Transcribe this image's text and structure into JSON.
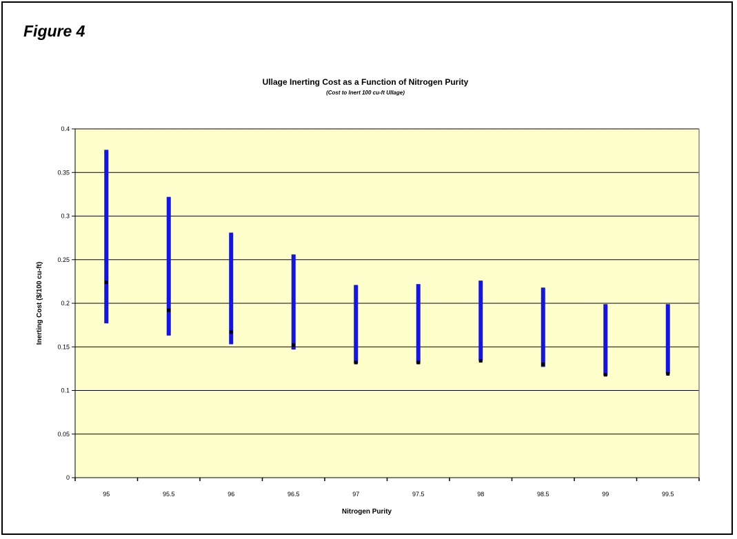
{
  "figure_label": "Figure 4",
  "colors": {
    "plot_bg": "#ffffcc",
    "range_bar": "#1414e6",
    "marker": "#000000",
    "grid": "#000000"
  },
  "chart_data": {
    "type": "bar",
    "title": "Ullage Inerting Cost as a Function of Nitrogen Purity",
    "subtitle": "(Cost to Inert 100 cu-ft Ullage)",
    "xlabel": "Nitrogen Purity",
    "ylabel": "Inerting Cost ($/100 cu-ft)",
    "categories": [
      "95",
      "95.5",
      "96",
      "96.5",
      "97",
      "97.5",
      "98",
      "98.5",
      "99",
      "99.5"
    ],
    "ylim": [
      0,
      0.4
    ],
    "yticks": [
      "0",
      "0.05",
      "0.1",
      "0.15",
      "0.2",
      "0.25",
      "0.3",
      "0.35",
      "0.4"
    ],
    "grid": true,
    "series": [
      {
        "values": [
          0.376,
          0.322,
          0.281,
          0.256,
          0.221,
          0.222,
          0.226,
          0.218,
          0.199,
          0.199
        ]
      },
      {
        "values": [
          0.177,
          0.163,
          0.153,
          0.147,
          0.131,
          0.131,
          0.134,
          0.127,
          0.117,
          0.119
        ]
      },
      {
        "values": [
          0.224,
          0.192,
          0.167,
          0.152,
          0.132,
          0.132,
          0.134,
          0.13,
          0.118,
          0.119
        ]
      }
    ]
  }
}
